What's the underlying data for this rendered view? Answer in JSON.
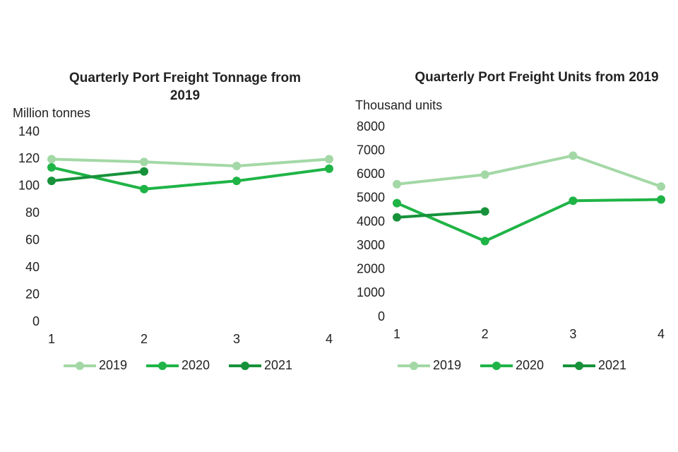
{
  "chart_data": [
    {
      "type": "line",
      "title": "Quarterly Port Freight Tonnage from 2019",
      "y_label": "Million tonnes",
      "x": [
        1,
        2,
        3,
        4
      ],
      "xlim": [
        1,
        4
      ],
      "xticks": [
        1,
        2,
        3,
        4
      ],
      "ylim": [
        0,
        140
      ],
      "yticks": [
        0,
        20,
        40,
        60,
        80,
        100,
        120,
        140
      ],
      "grid": false,
      "legend": "bottom",
      "series": [
        {
          "name": "2019",
          "color": "#a3d8a6",
          "values": [
            120,
            118,
            115,
            120
          ]
        },
        {
          "name": "2020",
          "color": "#1fb446",
          "values": [
            114,
            98,
            104,
            113
          ]
        },
        {
          "name": "2021",
          "color": "#17923a",
          "values": [
            104,
            111,
            null,
            null
          ]
        }
      ]
    },
    {
      "type": "line",
      "title": "Quarterly Port Freight Units from 2019",
      "y_label": "Thousand units",
      "x": [
        1,
        2,
        3,
        4
      ],
      "xlim": [
        1,
        4
      ],
      "xticks": [
        1,
        2,
        3,
        4
      ],
      "ylim": [
        0,
        8000
      ],
      "yticks": [
        0,
        1000,
        2000,
        3000,
        4000,
        5000,
        6000,
        7000,
        8000
      ],
      "grid": false,
      "legend": "bottom",
      "series": [
        {
          "name": "2019",
          "color": "#a3d8a6",
          "values": [
            5600,
            6000,
            6800,
            5500
          ]
        },
        {
          "name": "2020",
          "color": "#1fb446",
          "values": [
            4800,
            3200,
            4900,
            4950
          ]
        },
        {
          "name": "2021",
          "color": "#17923a",
          "values": [
            4200,
            4450,
            null,
            null
          ]
        }
      ]
    }
  ]
}
